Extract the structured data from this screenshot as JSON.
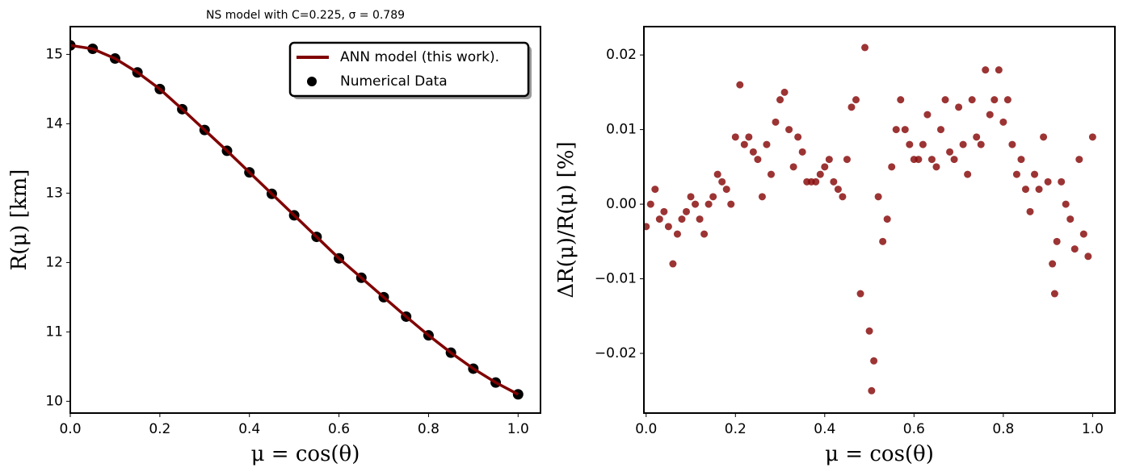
{
  "chart_data": [
    {
      "type": "line",
      "title": "NS model with C=0.225, σ = 0.789",
      "xlabel": "μ = cos(θ)",
      "ylabel": "R(μ) [km]",
      "x": [
        0,
        0.05,
        0.1,
        0.15,
        0.2,
        0.25,
        0.3,
        0.35,
        0.4,
        0.45,
        0.5,
        0.55,
        0.6,
        0.65,
        0.7,
        0.75,
        0.8,
        0.85,
        0.9,
        0.95,
        1.0
      ],
      "series": [
        {
          "name": "ANN model (this work).",
          "type": "line",
          "color": "#800000",
          "values": [
            15.13,
            15.08,
            14.94,
            14.74,
            14.5,
            14.21,
            13.91,
            13.61,
            13.3,
            12.99,
            12.68,
            12.37,
            12.06,
            11.78,
            11.5,
            11.22,
            10.95,
            10.7,
            10.47,
            10.27,
            10.1
          ]
        },
        {
          "name": "Numerical Data",
          "type": "scatter",
          "color": "#000000",
          "values": [
            15.13,
            15.08,
            14.94,
            14.74,
            14.5,
            14.21,
            13.91,
            13.61,
            13.3,
            12.99,
            12.68,
            12.37,
            12.06,
            11.78,
            11.5,
            11.22,
            10.95,
            10.7,
            10.47,
            10.27,
            10.1
          ]
        }
      ],
      "xlim": [
        0,
        1.05
      ],
      "xticks": [
        {
          "value": 0,
          "label": "0.0"
        },
        0.2,
        0.4,
        0.6,
        0.8,
        {
          "value": 1,
          "label": "1.0"
        }
      ],
      "ylim": [
        9.83,
        15.4
      ],
      "yticks": [
        10,
        11,
        12,
        13,
        14,
        15
      ],
      "legend": "upper right"
    },
    {
      "type": "scatter",
      "xlabel": "μ = cos(θ)",
      "ylabel": "ΔR(μ)/R(μ) [%]",
      "color": "#8b1010",
      "x": [
        0,
        0.01,
        0.02,
        0.03,
        0.04,
        0.05,
        0.06,
        0.07,
        0.08,
        0.09,
        0.1,
        0.11,
        0.12,
        0.13,
        0.14,
        0.15,
        0.16,
        0.17,
        0.18,
        0.19,
        0.2,
        0.21,
        0.22,
        0.23,
        0.24,
        0.25,
        0.26,
        0.27,
        0.28,
        0.29,
        0.3,
        0.31,
        0.32,
        0.33,
        0.34,
        0.35,
        0.36,
        0.37,
        0.38,
        0.39,
        0.4,
        0.41,
        0.42,
        0.43,
        0.44,
        0.45,
        0.46,
        0.47,
        0.48,
        0.49,
        0.5,
        0.505,
        0.51,
        0.52,
        0.53,
        0.54,
        0.55,
        0.56,
        0.57,
        0.58,
        0.59,
        0.6,
        0.61,
        0.62,
        0.63,
        0.64,
        0.65,
        0.66,
        0.67,
        0.68,
        0.69,
        0.7,
        0.71,
        0.72,
        0.73,
        0.74,
        0.75,
        0.76,
        0.77,
        0.78,
        0.79,
        0.8,
        0.81,
        0.82,
        0.83,
        0.84,
        0.85,
        0.86,
        0.87,
        0.88,
        0.89,
        0.9,
        0.91,
        0.915,
        0.92,
        0.93,
        0.94,
        0.95,
        0.96,
        0.97,
        0.98,
        0.99,
        1.0
      ],
      "values": [
        -0.003,
        0,
        0.002,
        -0.002,
        -0.001,
        -0.003,
        -0.008,
        -0.004,
        -0.002,
        -0.001,
        0.001,
        0,
        -0.002,
        -0.004,
        0,
        0.001,
        0.004,
        0.003,
        0.002,
        0,
        0.009,
        0.016,
        0.008,
        0.009,
        0.007,
        0.006,
        0.001,
        0.008,
        0.004,
        0.011,
        0.014,
        0.015,
        0.01,
        0.005,
        0.009,
        0.007,
        0.003,
        0.003,
        0.003,
        0.004,
        0.005,
        0.006,
        0.003,
        0.002,
        0.001,
        0.006,
        0.013,
        0.014,
        -0.012,
        0.021,
        -0.017,
        -0.025,
        -0.021,
        0.001,
        -0.005,
        -0.002,
        0.005,
        0.01,
        0.014,
        0.01,
        0.008,
        0.006,
        0.006,
        0.008,
        0.012,
        0.006,
        0.005,
        0.01,
        0.014,
        0.007,
        0.006,
        0.013,
        0.008,
        0.004,
        0.014,
        0.009,
        0.008,
        0.018,
        0.012,
        0.014,
        0.018,
        0.011,
        0.014,
        0.008,
        0.004,
        0.006,
        0.002,
        -0.001,
        0.004,
        0.002,
        0.009,
        0.003,
        -0.008,
        -0.012,
        -0.005,
        0.003,
        0,
        -0.002,
        -0.006,
        0.006,
        -0.004,
        -0.007,
        0.009
      ],
      "xlim": [
        -0.005,
        1.05
      ],
      "xticks": [
        {
          "value": 0,
          "label": "0.0"
        },
        0.2,
        0.4,
        0.6,
        0.8,
        {
          "value": 1,
          "label": "1.0"
        }
      ],
      "ylim": [
        -0.028,
        0.0238
      ],
      "yticks": [
        {
          "value": -0.02,
          "label": "−0.02"
        },
        {
          "value": -0.01,
          "label": "−0.01"
        },
        {
          "value": 0,
          "label": "0.00"
        },
        0.01,
        0.02
      ]
    }
  ]
}
